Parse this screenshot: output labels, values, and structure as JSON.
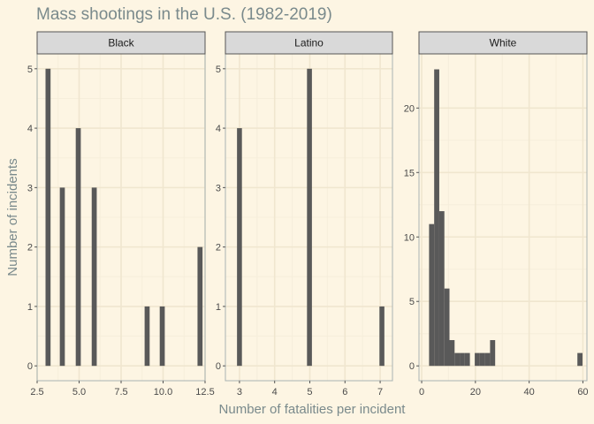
{
  "chart_data": {
    "type": "bar",
    "title": "Mass shootings in the U.S. (1982-2019)",
    "xlabel": "Number of fatalities per incident",
    "ylabel": "Number of incidents",
    "grid": true,
    "colors": {
      "background": "#fdf5e3",
      "bar": "#595959",
      "strip": "#d9d9d9",
      "grid_major": "#f0e6cf",
      "grid_minor": "#f6eedb",
      "text_muted": "#7a8a8c"
    },
    "panels": [
      {
        "name": "Black",
        "xlim": [
          2.5,
          12.5
        ],
        "ylim": [
          -0.25,
          5.25
        ],
        "xticks": [
          2.5,
          5.0,
          7.5,
          10.0,
          12.5
        ],
        "xtick_labels": [
          "2.5",
          "5.0",
          "7.5",
          "10.0",
          "12.5"
        ],
        "yticks": [
          0,
          1,
          2,
          3,
          4,
          5
        ],
        "ytick_labels": [
          "0",
          "1",
          "2",
          "3",
          "4",
          "5"
        ],
        "bar_width": 0.3,
        "bars": [
          {
            "x": 3.15,
            "count": 5
          },
          {
            "x": 4.0,
            "count": 3
          },
          {
            "x": 4.95,
            "count": 4
          },
          {
            "x": 5.9,
            "count": 3
          },
          {
            "x": 9.05,
            "count": 1
          },
          {
            "x": 9.95,
            "count": 1
          },
          {
            "x": 12.2,
            "count": 2
          }
        ]
      },
      {
        "name": "Latino",
        "xlim": [
          2.6,
          7.35
        ],
        "ylim": [
          -0.25,
          5.25
        ],
        "xticks": [
          3,
          4,
          5,
          6,
          7
        ],
        "xtick_labels": [
          "3",
          "4",
          "5",
          "6",
          "7"
        ],
        "yticks": [
          0,
          1,
          2,
          3,
          4,
          5
        ],
        "ytick_labels": [
          "0",
          "1",
          "2",
          "3",
          "4",
          "5"
        ],
        "bar_width": 0.14,
        "bars": [
          {
            "x": 3.0,
            "count": 4
          },
          {
            "x": 4.99,
            "count": 5
          },
          {
            "x": 7.05,
            "count": 1
          }
        ]
      },
      {
        "name": "White",
        "xlim": [
          -1,
          61.5
        ],
        "ylim": [
          -1.15,
          24.2
        ],
        "xticks": [
          0,
          20,
          40,
          60
        ],
        "xtick_labels": [
          "0",
          "20",
          "40",
          "60"
        ],
        "yticks": [
          0,
          5,
          10,
          15,
          20
        ],
        "ytick_labels": [
          "0",
          "5",
          "10",
          "15",
          "20"
        ],
        "bar_width": 1.9,
        "bars": [
          {
            "x": 3.7,
            "count": 11
          },
          {
            "x": 5.6,
            "count": 23
          },
          {
            "x": 7.5,
            "count": 12
          },
          {
            "x": 9.4,
            "count": 6
          },
          {
            "x": 11.3,
            "count": 2
          },
          {
            "x": 13.2,
            "count": 1
          },
          {
            "x": 15.1,
            "count": 1
          },
          {
            "x": 17.0,
            "count": 1
          },
          {
            "x": 20.7,
            "count": 1
          },
          {
            "x": 22.6,
            "count": 1
          },
          {
            "x": 24.5,
            "count": 1
          },
          {
            "x": 26.4,
            "count": 2
          },
          {
            "x": 58.9,
            "count": 1
          }
        ]
      }
    ]
  }
}
